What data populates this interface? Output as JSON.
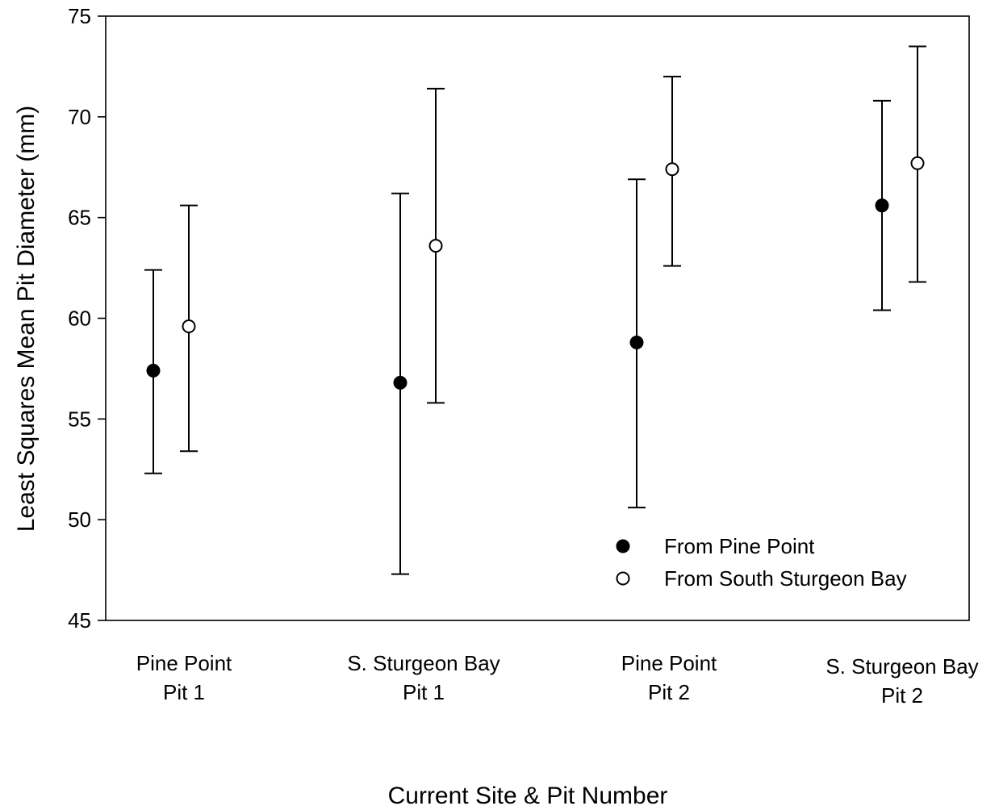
{
  "chart_data": {
    "type": "scatter",
    "title": "",
    "xlabel": "Current Site & Pit Number",
    "ylabel": "Least Squares Mean Pit Diameter (mm)",
    "ylim": [
      45,
      75
    ],
    "yticks": [
      45,
      50,
      55,
      60,
      65,
      70,
      75
    ],
    "categories": [
      [
        "Pine Point",
        "Pit 1"
      ],
      [
        "S. Sturgeon Bay",
        "Pit 1"
      ],
      [
        "Pine Point",
        "Pit 2"
      ],
      [
        "S. Sturgeon Bay",
        "Pit 2"
      ]
    ],
    "grid": false,
    "legend_position": "bottom-right",
    "series": [
      {
        "name": "From Pine Point",
        "marker": "filled-circle",
        "color": "#000000",
        "values": [
          57.4,
          56.8,
          58.8,
          65.6
        ],
        "lower": [
          52.3,
          47.3,
          50.6,
          60.4
        ],
        "upper": [
          62.4,
          66.2,
          66.9,
          70.8
        ]
      },
      {
        "name": "From South Sturgeon Bay",
        "marker": "open-circle",
        "color": "#000000",
        "values": [
          59.6,
          63.6,
          67.4,
          67.7
        ],
        "lower": [
          53.4,
          55.8,
          62.6,
          61.8
        ],
        "upper": [
          65.6,
          71.4,
          72.0,
          73.5
        ]
      }
    ]
  }
}
